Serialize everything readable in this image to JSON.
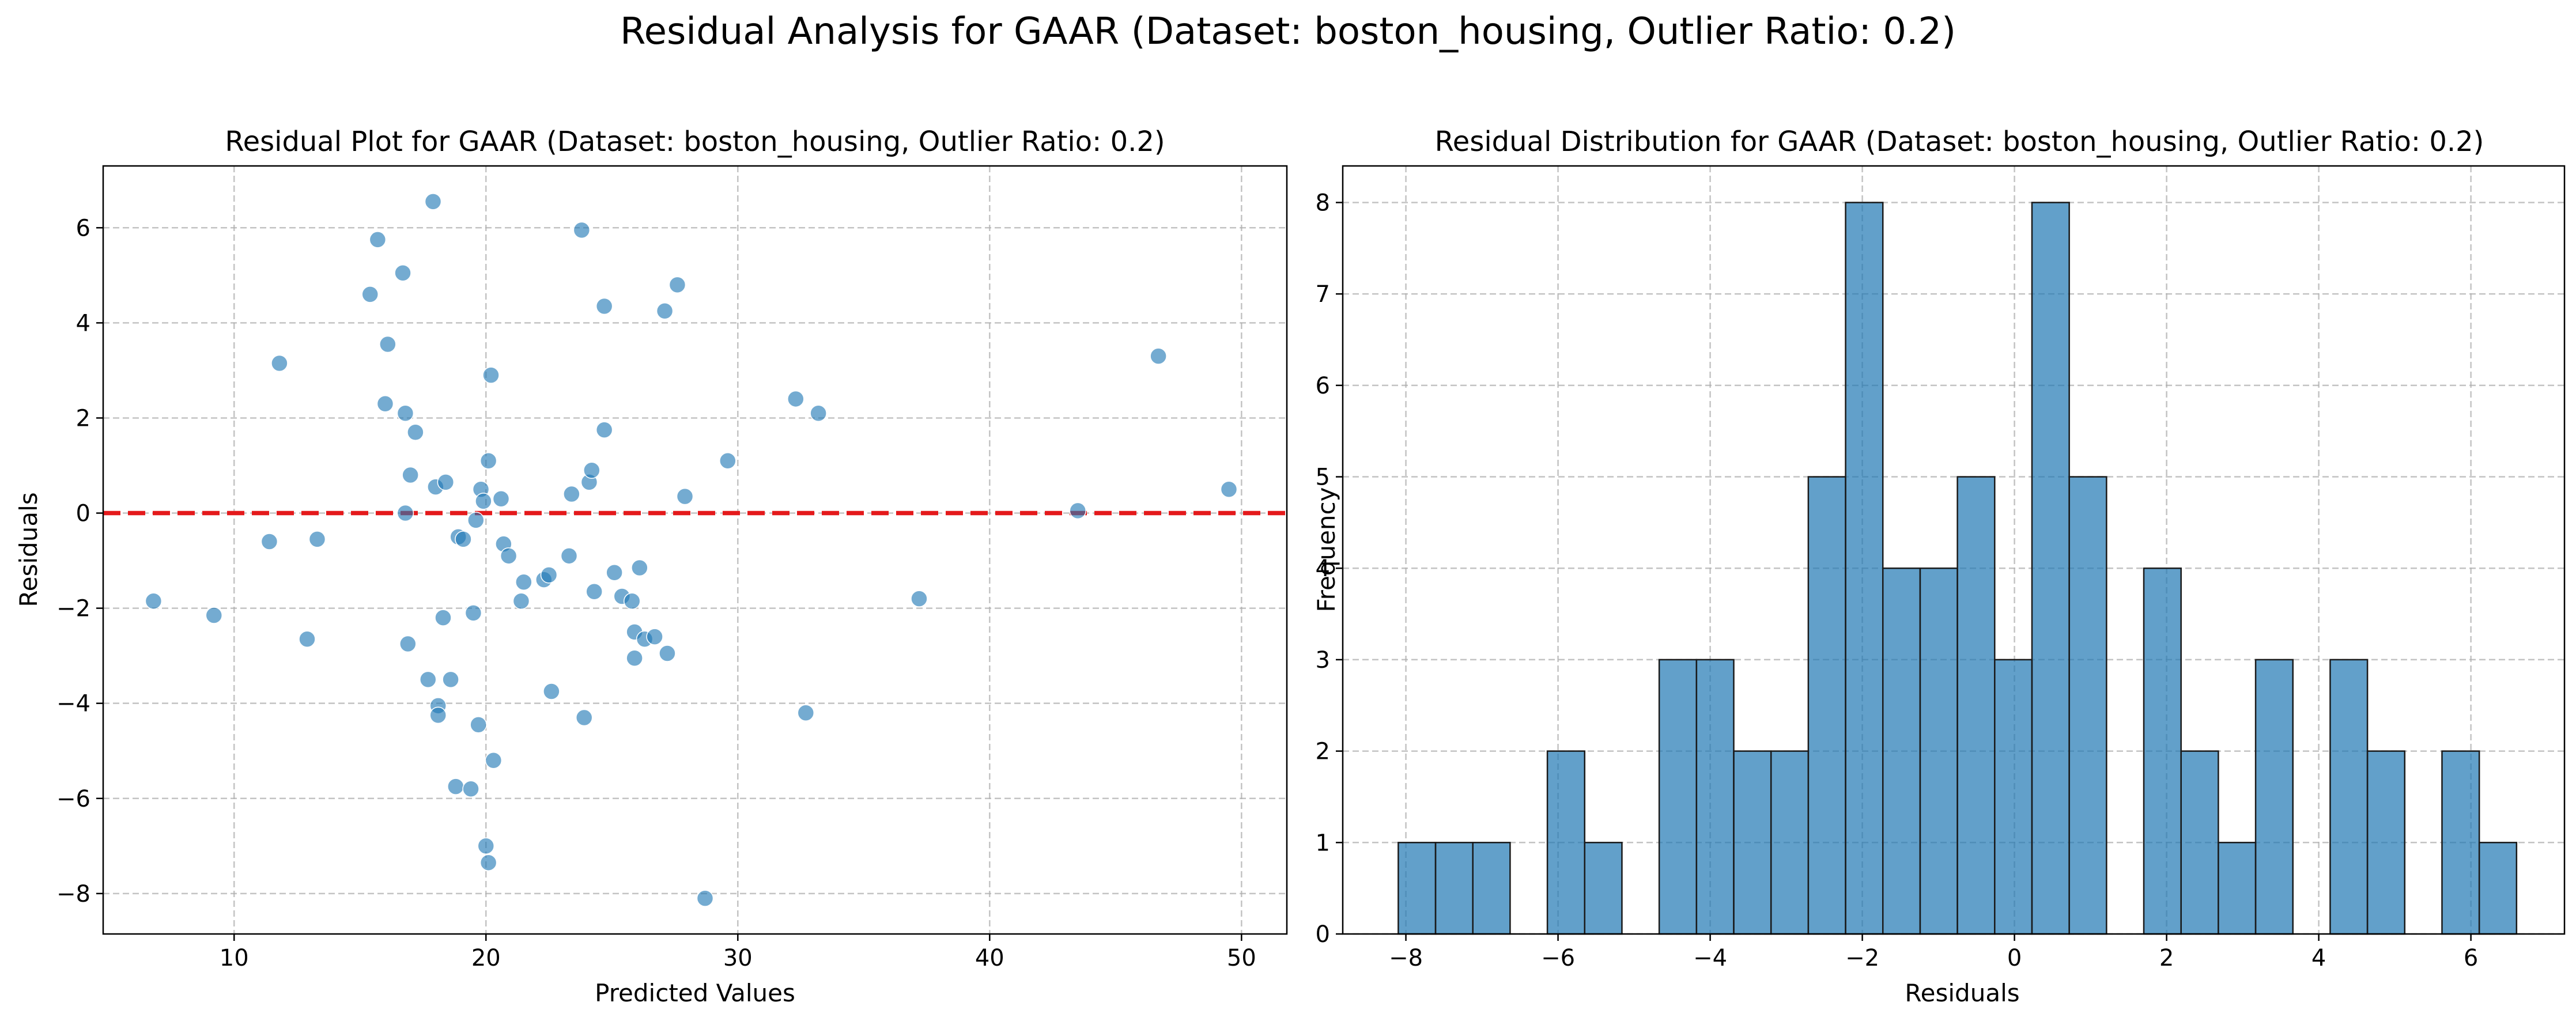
{
  "figure": {
    "suptitle": "Residual Analysis for GAAR (Dataset: boston_housing, Outlier Ratio: 0.2)"
  },
  "chart_data": [
    {
      "type": "scatter",
      "title": "Residual Plot for GAAR (Dataset: boston_housing, Outlier Ratio: 0.2)",
      "xlabel": "Predicted Values",
      "ylabel": "Residuals",
      "xlim": [
        4.8,
        51.8
      ],
      "ylim": [
        -8.85,
        7.3
      ],
      "xticks": [
        10,
        20,
        30,
        40,
        50
      ],
      "yticks": [
        -8,
        -6,
        -4,
        -2,
        0,
        2,
        4,
        6
      ],
      "grid": true,
      "point_color": "#1f77b4",
      "reference_line": {
        "y": 0,
        "color": "#e41a1c",
        "style": "dashed"
      },
      "points": [
        [
          6.8,
          -1.85
        ],
        [
          9.2,
          -2.15
        ],
        [
          11.4,
          -0.6
        ],
        [
          11.8,
          3.15
        ],
        [
          12.9,
          -2.65
        ],
        [
          13.3,
          -0.55
        ],
        [
          15.4,
          4.6
        ],
        [
          15.7,
          5.75
        ],
        [
          16.0,
          2.3
        ],
        [
          16.1,
          3.55
        ],
        [
          16.7,
          5.05
        ],
        [
          16.8,
          2.1
        ],
        [
          16.8,
          0.0
        ],
        [
          16.9,
          -2.75
        ],
        [
          17.0,
          0.8
        ],
        [
          17.2,
          1.7
        ],
        [
          17.7,
          -3.5
        ],
        [
          17.9,
          6.55
        ],
        [
          18.0,
          0.55
        ],
        [
          18.1,
          -4.05
        ],
        [
          18.1,
          -4.25
        ],
        [
          18.3,
          -2.2
        ],
        [
          18.4,
          0.65
        ],
        [
          18.6,
          -3.5
        ],
        [
          18.8,
          -5.75
        ],
        [
          18.9,
          -0.5
        ],
        [
          19.1,
          -0.55
        ],
        [
          19.4,
          -5.8
        ],
        [
          19.5,
          -2.1
        ],
        [
          19.6,
          -0.15
        ],
        [
          19.7,
          -4.45
        ],
        [
          19.8,
          0.5
        ],
        [
          19.9,
          0.25
        ],
        [
          20.0,
          -7.0
        ],
        [
          20.1,
          -7.35
        ],
        [
          20.1,
          1.1
        ],
        [
          20.2,
          2.9
        ],
        [
          20.3,
          -5.2
        ],
        [
          20.6,
          0.3
        ],
        [
          20.7,
          -0.65
        ],
        [
          20.9,
          -0.9
        ],
        [
          21.4,
          -1.85
        ],
        [
          21.5,
          -1.45
        ],
        [
          22.3,
          -1.4
        ],
        [
          22.5,
          -1.3
        ],
        [
          22.6,
          -3.75
        ],
        [
          23.3,
          -0.9
        ],
        [
          23.4,
          0.4
        ],
        [
          23.8,
          5.95
        ],
        [
          23.9,
          -4.3
        ],
        [
          24.1,
          0.65
        ],
        [
          24.2,
          0.9
        ],
        [
          24.3,
          -1.65
        ],
        [
          24.7,
          4.35
        ],
        [
          24.7,
          1.75
        ],
        [
          25.1,
          -1.25
        ],
        [
          25.4,
          -1.75
        ],
        [
          25.8,
          -1.85
        ],
        [
          25.9,
          -2.5
        ],
        [
          25.9,
          -3.05
        ],
        [
          26.1,
          -1.15
        ],
        [
          26.3,
          -2.65
        ],
        [
          26.7,
          -2.6
        ],
        [
          27.1,
          4.25
        ],
        [
          27.2,
          -2.95
        ],
        [
          27.6,
          4.8
        ],
        [
          27.9,
          0.35
        ],
        [
          28.7,
          -8.1
        ],
        [
          29.6,
          1.1
        ],
        [
          32.3,
          2.4
        ],
        [
          32.7,
          -4.2
        ],
        [
          33.2,
          2.1
        ],
        [
          37.2,
          -1.8
        ],
        [
          43.5,
          0.05
        ],
        [
          46.7,
          3.3
        ],
        [
          49.5,
          0.5
        ]
      ]
    },
    {
      "type": "bar",
      "title": "Residual Distribution for GAAR (Dataset: boston_housing, Outlier Ratio: 0.2)",
      "xlabel": "Residuals",
      "ylabel": "Frequency",
      "xlim": [
        -8.83,
        7.23
      ],
      "ylim": [
        0,
        8.4
      ],
      "xticks": [
        -8,
        -6,
        -4,
        -2,
        0,
        2,
        4,
        6
      ],
      "yticks": [
        0,
        1,
        2,
        3,
        4,
        5,
        6,
        7,
        8
      ],
      "grid": true,
      "bar_color": "#1f77b4",
      "bin_start": -8.1,
      "bin_width": 0.49,
      "counts": [
        1,
        1,
        1,
        0,
        2,
        1,
        0,
        3,
        3,
        2,
        2,
        5,
        8,
        4,
        4,
        5,
        3,
        8,
        5,
        0,
        4,
        2,
        1,
        3,
        0,
        3,
        2,
        0,
        2,
        1
      ]
    }
  ]
}
